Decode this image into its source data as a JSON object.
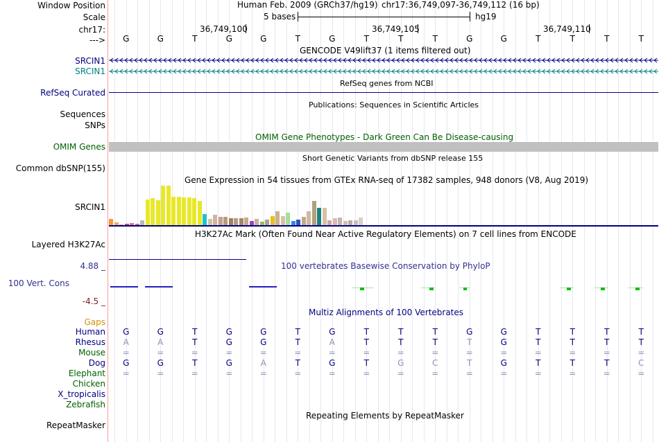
{
  "header": {
    "window_position_label": "Window Position",
    "assembly": "Human Feb. 2009 (GRCh37/hg19)",
    "position": "chr17:36,749,097-36,749,112 (16 bp)",
    "scale_label": "Scale",
    "scale_text": "5 bases",
    "scale_db": "hg19",
    "chrom_label": "chr17:",
    "ticks": [
      "36,749,100",
      "36,749,105",
      "36,749,110"
    ],
    "arrow_label": "--->"
  },
  "bases": [
    "G",
    "G",
    "T",
    "G",
    "G",
    "T",
    "G",
    "T",
    "T",
    "T",
    "G",
    "G",
    "T",
    "T",
    "T",
    "T"
  ],
  "tracks": {
    "gencode_title": "GENCODE V49lift37 (1 items filtered out)",
    "srcin1_a": "SRCIN1",
    "srcin1_b": "SRCIN1",
    "refseq_label": "RefSeq Curated",
    "refseq_title": "RefSeq genes from NCBI",
    "pubs_title": "Publications: Sequences in Scientific Articles",
    "sequences_label": "Sequences",
    "snps_label": "SNPs",
    "omim_title": "OMIM Gene Phenotypes - Dark Green Can Be Disease-causing",
    "omim_label": "OMIM Genes",
    "dbsnp_title": "Short Genetic Variants from dbSNP release 155",
    "dbsnp_label": "Common dbSNP(155)",
    "gtex_title": "Gene Expression in 54 tissues from GTEx RNA-seq of 17382 samples, 948 donors (V8, Aug 2019)",
    "gtex_label": "SRCIN1",
    "h3k27_title": "H3K27Ac Mark (Often Found Near Active Regulatory Elements) on 7 cell lines from ENCODE",
    "h3k27_label": "Layered H3K27Ac",
    "cons_title": "100 vertebrates Basewise Conservation by PhyloP",
    "cons_label": "100 Vert. Cons",
    "cons_max": "4.88 _",
    "cons_min": "-4.5 _",
    "multiz_title": "Multiz Alignments of 100 Vertebrates",
    "repeat_title": "Repeating Elements by RepeatMasker",
    "repeat_label": "RepeatMasker"
  },
  "gtex_heights": [
    10,
    5,
    2,
    3,
    4,
    3,
    8,
    38,
    40,
    37,
    58,
    58,
    42,
    42,
    41,
    41,
    40,
    36,
    17,
    10,
    16,
    13,
    13,
    11,
    11,
    11,
    12,
    7,
    10,
    6,
    9,
    14,
    21,
    14,
    19,
    7,
    9,
    13,
    21,
    36,
    26,
    26,
    8,
    11,
    12,
    7,
    8,
    8,
    12
  ],
  "gtex_colors": [
    "#f29a3d",
    "#f2a65a",
    "#c8a07a",
    "#b0507a",
    "#e07080",
    "#d07070",
    "#b8b8b8",
    "#e8e82a",
    "#e8e82a",
    "#e8e82a",
    "#e8e82a",
    "#e8e82a",
    "#e8e82a",
    "#e8e82a",
    "#e8e82a",
    "#e8e82a",
    "#e8e82a",
    "#e8e82a",
    "#22c0d0",
    "#c8c8a0",
    "#d8b0a0",
    "#c8a090",
    "#b89a80",
    "#a08060",
    "#b89a80",
    "#a08870",
    "#c8a890",
    "#a040c0",
    "#c8b0a0",
    "#90c050",
    "#b0a090",
    "#e8c020",
    "#d0b090",
    "#d8c0a8",
    "#a0e0a0",
    "#4080e0",
    "#3050c0",
    "#c0a890",
    "#d0b8a0",
    "#b0a080",
    "#208080",
    "#d8c0a8",
    "#d0a8a0",
    "#e0b8b0",
    "#c0b8b0",
    "#d0c0b0",
    "#b8b0a8",
    "#c8c0b8",
    "#d8d0c8"
  ],
  "alignment": {
    "gaps_label": "Gaps",
    "species": [
      {
        "name": "Human",
        "color": "#000080",
        "row": [
          "G",
          "G",
          "T",
          "G",
          "G",
          "T",
          "G",
          "T",
          "T",
          "T",
          "G",
          "G",
          "T",
          "T",
          "T",
          "T"
        ]
      },
      {
        "name": "Rhesus",
        "color": "#000080",
        "row": [
          "A",
          "A",
          "T",
          "G",
          "G",
          "T",
          "A",
          "T",
          "T",
          "T",
          "T",
          "G",
          "T",
          "T",
          "T",
          "T"
        ]
      },
      {
        "name": "Mouse",
        "color": "#006000",
        "row": [
          "=",
          "=",
          "=",
          "=",
          "=",
          "=",
          "=",
          "=",
          "=",
          "=",
          "=",
          "=",
          "=",
          "=",
          "=",
          "="
        ]
      },
      {
        "name": "Dog",
        "color": "#000080",
        "row": [
          "G",
          "G",
          "T",
          "G",
          "A",
          "T",
          "G",
          "T",
          "G",
          "C",
          "T",
          "G",
          "T",
          "T",
          "T",
          "C"
        ]
      },
      {
        "name": "Elephant",
        "color": "#006000",
        "row": [
          "=",
          "=",
          "=",
          "=",
          "=",
          "=",
          "=",
          "=",
          "=",
          "=",
          "=",
          "=",
          "=",
          "=",
          "=",
          "="
        ]
      },
      {
        "name": "Chicken",
        "color": "#006000",
        "row": [
          "",
          "",
          "",
          "",
          "",
          "",
          "",
          "",
          "",
          "",
          "",
          "",
          "",
          "",
          "",
          ""
        ]
      },
      {
        "name": "X_tropicalis",
        "color": "#000080",
        "row": [
          "",
          "",
          "",
          "",
          "",
          "",
          "",
          "",
          "",
          "",
          "",
          "",
          "",
          "",
          "",
          ""
        ]
      },
      {
        "name": "Zebrafish",
        "color": "#006000",
        "row": [
          "",
          "",
          "",
          "",
          "",
          "",
          "",
          "",
          "",
          "",
          "",
          "",
          "",
          "",
          "",
          ""
        ]
      }
    ],
    "faded": {
      "Rhesus": [
        true,
        true,
        false,
        false,
        false,
        false,
        true,
        false,
        false,
        false,
        true,
        false,
        false,
        false,
        false,
        false
      ],
      "Dog": [
        false,
        false,
        false,
        false,
        true,
        false,
        false,
        false,
        true,
        true,
        true,
        false,
        false,
        false,
        false,
        true
      ]
    }
  },
  "colors": {
    "navy": "#000080",
    "teal": "#008080",
    "omim_green": "#006000",
    "cons_blue": "#303090",
    "cons_red": "#802020",
    "gaps": "#d09000",
    "phylop_pos": "#2020c0",
    "phylop_neg": "#10c010"
  }
}
